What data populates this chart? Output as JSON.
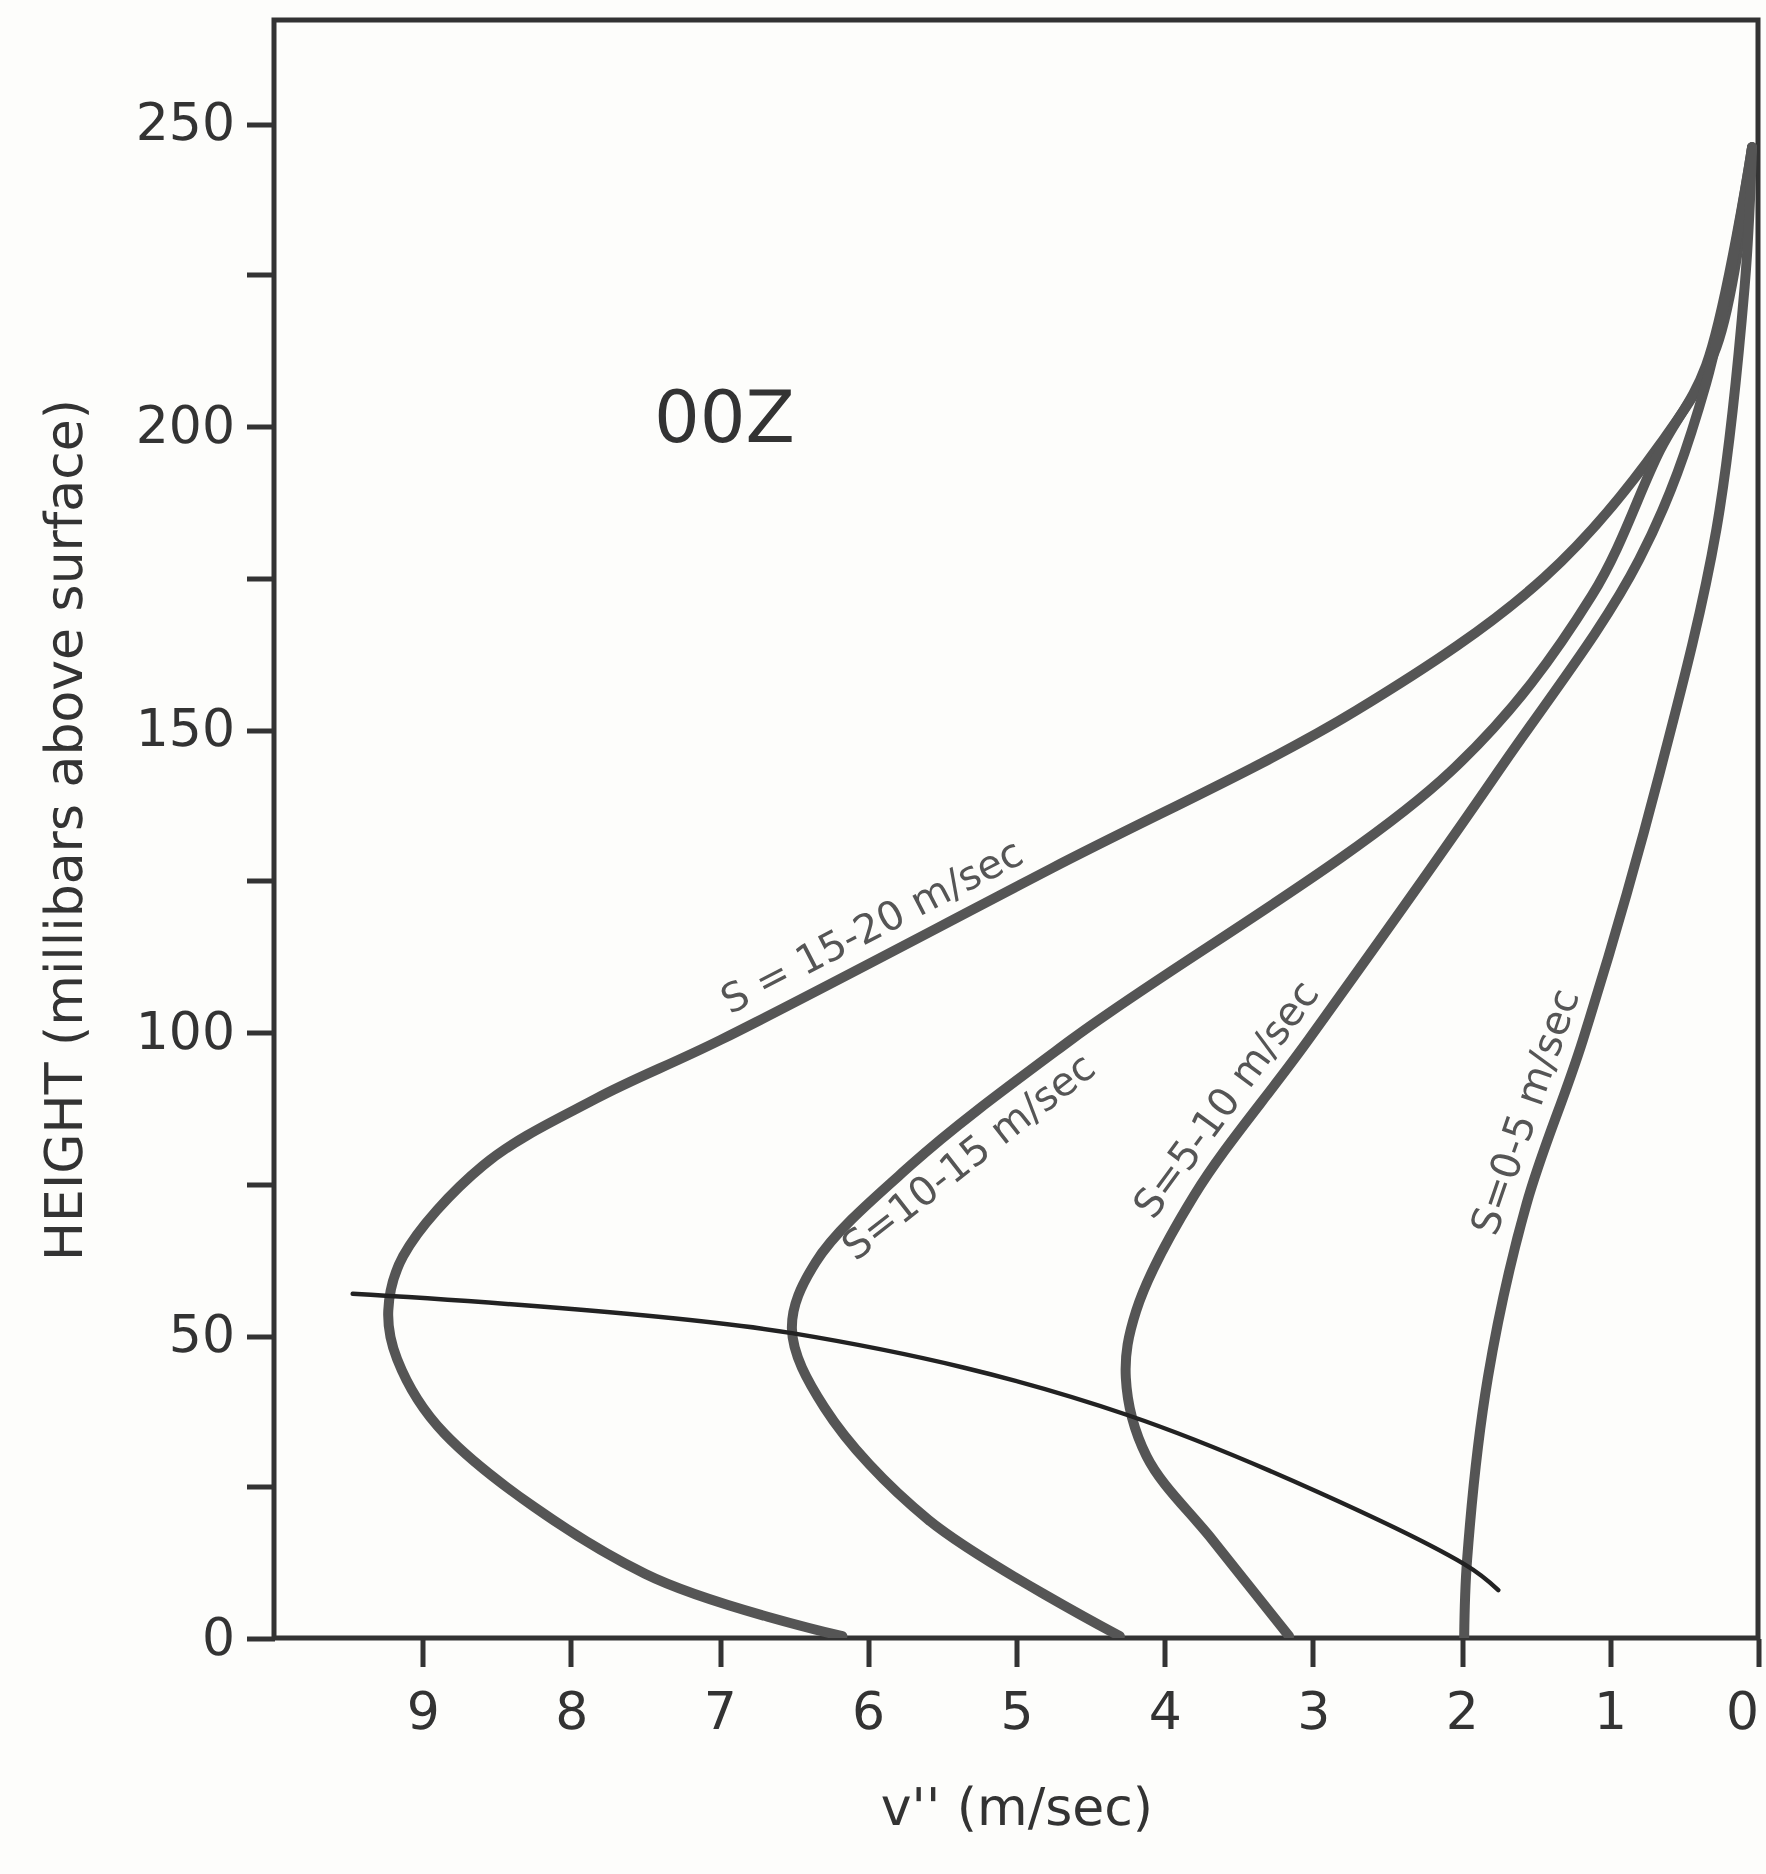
{
  "chart_data": {
    "type": "line",
    "xlabel": "v'' (m/sec)",
    "ylabel": "HEIGHT (millibars above surface)",
    "annotations": [
      "00Z"
    ],
    "xlim": [
      10,
      0
    ],
    "ylim": [
      0,
      267
    ],
    "xticks": [
      9,
      8,
      7,
      6,
      5,
      4,
      3,
      2,
      1,
      0
    ],
    "yticks": [
      0,
      {
        "value": 25,
        "label": null
      },
      50,
      {
        "value": 75,
        "label": null
      },
      100,
      {
        "value": 125,
        "label": null
      },
      150,
      {
        "value": 175,
        "label": null
      },
      200,
      {
        "value": 225,
        "label": null
      },
      250
    ],
    "grid": false,
    "marker": "none",
    "line_style": "solid",
    "series": [
      {
        "name": "S = 15-20 m/sec",
        "color": "#555555",
        "x": [
          6.17,
          7.5,
          8.85,
          9.17,
          9.23,
          9.13,
          8.59,
          7.83,
          6.99,
          4.76,
          2.71,
          1.44,
          0.66,
          0.28,
          0.04
        ],
        "values": [
          0.3,
          10.6,
          33.7,
          46,
          54,
          63,
          78,
          89,
          98.7,
          127,
          153,
          175,
          197,
          213,
          246
        ]
      },
      {
        "name": "S=10-15 m/sec",
        "color": "#555555",
        "x": [
          4.3,
          5.59,
          6.29,
          6.51,
          6.35,
          5.71,
          4.63,
          2.07,
          1.12,
          0.66,
          0.35,
          0.04
        ],
        "values": [
          0.3,
          19.5,
          38,
          51,
          62,
          78,
          98.7,
          143,
          172,
          196,
          210,
          246
        ]
      },
      {
        "name": "S=5-10 m/sec",
        "color": "#555555",
        "x": [
          3.16,
          3.67,
          4.12,
          4.26,
          4.19,
          3.8,
          3.03,
          1.75,
          0.8,
          0.35,
          0.04
        ],
        "values": [
          0.3,
          16,
          30,
          43,
          54,
          73,
          98.7,
          143,
          178,
          207,
          246
        ]
      },
      {
        "name": "S=0-5 m/sec",
        "color": "#555555",
        "x": [
          1.98,
          1.96,
          1.82,
          1.56,
          1.18,
          0.66,
          0.28,
          0.09,
          0.04
        ],
        "values": [
          0,
          13,
          43,
          71.6,
          98.7,
          143,
          183,
          223,
          246
        ]
      },
      {
        "color": "#222222",
        "x": [
          9.47,
          6.51,
          4.25,
          1.98,
          1.75
        ],
        "values": [
          56.8,
          50.3,
          36.8,
          12.2,
          7.9
        ]
      }
    ]
  }
}
